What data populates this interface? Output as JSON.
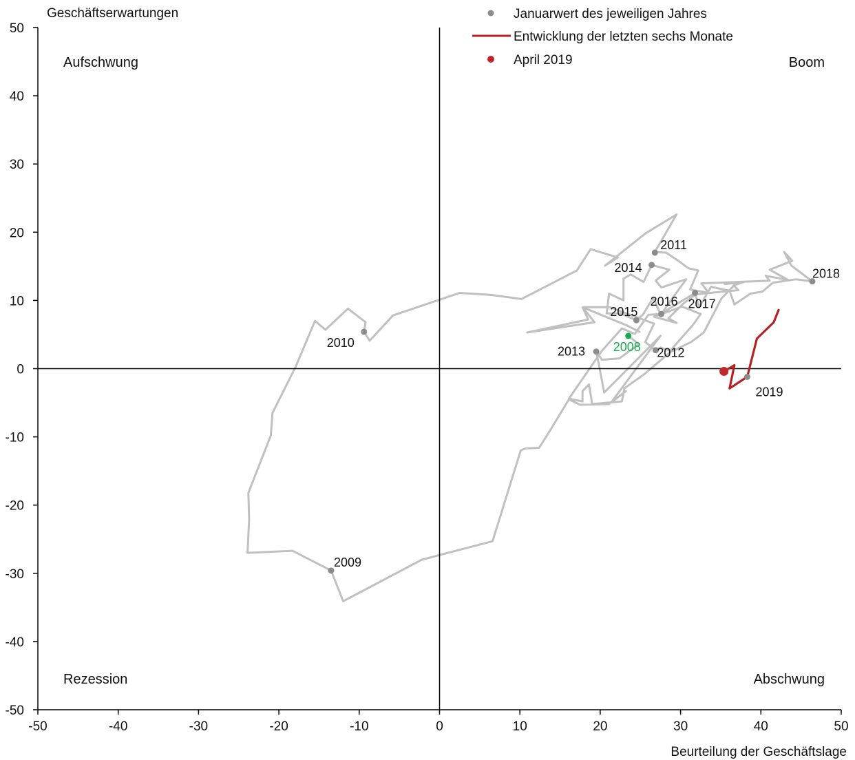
{
  "chart_data": {
    "type": "line",
    "title": "",
    "xlabel": "Beurteilung der Geschäftslage",
    "ylabel": "Geschäftserwartungen",
    "xlim": [
      -50,
      50
    ],
    "ylim": [
      -50,
      50
    ],
    "xticks": [
      -50,
      -40,
      -30,
      -20,
      -10,
      0,
      10,
      20,
      30,
      40,
      50
    ],
    "yticks": [
      -50,
      -40,
      -30,
      -20,
      -10,
      0,
      10,
      20,
      30,
      40,
      50
    ],
    "grid": false,
    "legend_position": "top",
    "colors": {
      "history_line": "#c0c0c0",
      "year_marker": "#8c8c8c",
      "recent_line": "#b22222",
      "current_point": "#c0272d",
      "highlight_year": "#1aaa4e",
      "axis": "#000000"
    },
    "quadrant_labels": {
      "top_left": "Aufschwung",
      "top_right": "Boom",
      "bottom_left": "Rezession",
      "bottom_right": "Abschwung"
    },
    "legend": [
      {
        "label": "Januarwert des jeweiligen Jahres",
        "marker": "dot",
        "color": "#8c8c8c"
      },
      {
        "label": "Entwicklung der letzten sechs Monate",
        "marker": "line",
        "color": "#b22222"
      },
      {
        "label": "April 2019",
        "marker": "dot",
        "color": "#c0272d"
      }
    ],
    "series": [
      {
        "name": "",
        "color": "#c0c0c0",
        "points": [
          [
            23.5,
            4.8
          ],
          [
            24.8,
            3.6
          ],
          [
            22.4,
            1.5
          ],
          [
            20.2,
            1.3
          ],
          [
            19.5,
            2.6
          ],
          [
            20.5,
            -3.5
          ],
          [
            27.5,
            4.8
          ],
          [
            21.4,
            -4.9
          ],
          [
            23.2,
            -3.3
          ],
          [
            21.1,
            -5.2
          ],
          [
            17.5,
            -5.3
          ],
          [
            16.1,
            -4.5
          ],
          [
            13.9,
            -8.8
          ],
          [
            12.4,
            -11.6
          ],
          [
            10.7,
            -11.7
          ],
          [
            10.1,
            -12.0
          ],
          [
            6.6,
            -25.3
          ],
          [
            -2.2,
            -28.0
          ],
          [
            -12.0,
            -34.1
          ],
          [
            -13.5,
            -29.6
          ],
          [
            -18.3,
            -26.7
          ],
          [
            -23.9,
            -27.0
          ],
          [
            -23.7,
            -22.1
          ],
          [
            -23.8,
            -18.2
          ],
          [
            -21.0,
            -9.8
          ],
          [
            -20.8,
            -6.5
          ],
          [
            -17.9,
            0.3
          ],
          [
            -15.5,
            7.0
          ],
          [
            -14.2,
            5.7
          ],
          [
            -11.4,
            8.8
          ],
          [
            -9.2,
            6.8
          ],
          [
            -9.4,
            5.4
          ],
          [
            -8.7,
            4.1
          ],
          [
            -5.8,
            7.8
          ],
          [
            2.5,
            11.1
          ],
          [
            6.5,
            10.8
          ],
          [
            10.2,
            10.2
          ],
          [
            17.1,
            14.4
          ],
          [
            18.8,
            17.5
          ],
          [
            22.2,
            16.3
          ],
          [
            20.6,
            15.1
          ],
          [
            25.6,
            19.8
          ],
          [
            29.5,
            22.6
          ],
          [
            26.8,
            17.1
          ],
          [
            28.2,
            17.0
          ],
          [
            29.6,
            15.9
          ],
          [
            31.0,
            14.7
          ],
          [
            32.2,
            14.4
          ],
          [
            31.2,
            11.6
          ],
          [
            33.5,
            11.1
          ],
          [
            32.6,
            12.5
          ],
          [
            37.1,
            12.7
          ],
          [
            35.1,
            10.3
          ],
          [
            32.9,
            5.3
          ],
          [
            31.3,
            3.9
          ],
          [
            28.7,
            2.4
          ],
          [
            25.5,
            -0.8
          ],
          [
            23.0,
            -2.9
          ],
          [
            22.7,
            -4.8
          ],
          [
            19.0,
            -5.2
          ],
          [
            18.6,
            -2.3
          ],
          [
            17.8,
            -3.3
          ],
          [
            17.8,
            -4.8
          ],
          [
            16.1,
            -4.4
          ],
          [
            19.2,
            0.9
          ],
          [
            20.2,
            2.6
          ],
          [
            22.7,
            5.9
          ],
          [
            24.3,
            5.1
          ],
          [
            26.0,
            7.9
          ],
          [
            27.6,
            8.0
          ],
          [
            29.4,
            11.0
          ],
          [
            30.7,
            13.1
          ],
          [
            27.6,
            11.9
          ],
          [
            26.9,
            12.9
          ],
          [
            28.6,
            14.5
          ],
          [
            26.4,
            15.2
          ],
          [
            25.4,
            12.7
          ],
          [
            23.8,
            13.8
          ],
          [
            22.9,
            13.2
          ],
          [
            22.9,
            10.0
          ],
          [
            21.1,
            11.0
          ],
          [
            20.9,
            9.0
          ],
          [
            20.8,
            8.1
          ],
          [
            22.5,
            8.1
          ],
          [
            24.5,
            7.1
          ],
          [
            25.3,
            7.9
          ],
          [
            26.6,
            10.4
          ],
          [
            27.5,
            8.0
          ],
          [
            31.8,
            11.1
          ],
          [
            32.3,
            9.0
          ],
          [
            33.8,
            12.0
          ],
          [
            36.1,
            11.4
          ],
          [
            36.7,
            9.4
          ],
          [
            38.7,
            11.0
          ],
          [
            40.2,
            11.3
          ],
          [
            41.5,
            12.6
          ],
          [
            44.4,
            13.1
          ],
          [
            46.4,
            12.8
          ],
          [
            43.8,
            15.1
          ],
          [
            42.9,
            17.1
          ],
          [
            43.9,
            15.8
          ],
          [
            41.1,
            14.5
          ],
          [
            43.4,
            13.0
          ],
          [
            40.6,
            13.6
          ],
          [
            41.1,
            12.9
          ],
          [
            37.0,
            12.7
          ],
          [
            35.5,
            12.4
          ],
          [
            37.9,
            12.7
          ],
          [
            36.6,
            12.2
          ],
          [
            37.2,
            11.5
          ],
          [
            31.9,
            10.9
          ],
          [
            30.4,
            9.6
          ],
          [
            28.5,
            7.4
          ],
          [
            29.5,
            6.7
          ],
          [
            26.7,
            7.6
          ],
          [
            30.2,
            9.1
          ],
          [
            32.5,
            8.0
          ],
          [
            31.6,
            6.5
          ],
          [
            28.7,
            2.6
          ],
          [
            27.5,
            3.1
          ],
          [
            26.9,
            2.7
          ],
          [
            25.6,
            3.9
          ],
          [
            26.7,
            6.6
          ],
          [
            21.2,
            9.0
          ],
          [
            17.8,
            9.0
          ],
          [
            19.3,
            6.8
          ],
          [
            10.9,
            5.3
          ],
          [
            18.5,
            7.2
          ],
          [
            17.8,
            9.0
          ],
          [
            23.2,
            6.4
          ],
          [
            24.9,
            5.4
          ]
        ]
      },
      {
        "name": "Entwicklung der letzten sechs Monate",
        "color": "#b22222",
        "points": [
          [
            42.2,
            8.6
          ],
          [
            41.6,
            6.8
          ],
          [
            39.5,
            4.4
          ],
          [
            38.3,
            -1.2
          ],
          [
            36.1,
            -2.9
          ],
          [
            36.7,
            0.5
          ],
          [
            35.4,
            -0.4
          ]
        ]
      }
    ],
    "year_points": [
      {
        "year": "2008",
        "x": 23.5,
        "y": 4.8,
        "color": "#1aaa4e",
        "label_dx": -2,
        "label_dy": 22,
        "anchor": "middle"
      },
      {
        "year": "2009",
        "x": -13.5,
        "y": -29.6,
        "color": "#8c8c8c",
        "label_dx": 4,
        "label_dy": -6,
        "anchor": "start"
      },
      {
        "year": "2010",
        "x": -9.4,
        "y": 5.4,
        "color": "#8c8c8c",
        "label_dx": -14,
        "label_dy": 22,
        "anchor": "end"
      },
      {
        "year": "2011",
        "x": 26.8,
        "y": 17.0,
        "color": "#8c8c8c",
        "label_dx": 8,
        "label_dy": -5,
        "anchor": "start"
      },
      {
        "year": "2012",
        "x": 26.9,
        "y": 2.7,
        "color": "#8c8c8c",
        "label_dx": 2,
        "label_dy": 10,
        "anchor": "start"
      },
      {
        "year": "2013",
        "x": 19.5,
        "y": 2.5,
        "color": "#8c8c8c",
        "label_dx": -16,
        "label_dy": 6,
        "anchor": "end"
      },
      {
        "year": "2014",
        "x": 26.4,
        "y": 15.2,
        "color": "#8c8c8c",
        "label_dx": -14,
        "label_dy": 10,
        "anchor": "end"
      },
      {
        "year": "2015",
        "x": 24.5,
        "y": 7.1,
        "color": "#8c8c8c",
        "label_dx": 2,
        "label_dy": -6,
        "anchor": "end"
      },
      {
        "year": "2016",
        "x": 27.6,
        "y": 8.0,
        "color": "#8c8c8c",
        "label_dx": 4,
        "label_dy": -12,
        "anchor": "middle"
      },
      {
        "year": "2017",
        "x": 31.8,
        "y": 11.1,
        "color": "#8c8c8c",
        "label_dx": -10,
        "label_dy": 22,
        "anchor": "start"
      },
      {
        "year": "2018",
        "x": 46.4,
        "y": 12.8,
        "color": "#8c8c8c",
        "label_dx": 0,
        "label_dy": -5,
        "anchor": "start"
      },
      {
        "year": "2019",
        "x": 38.3,
        "y": -1.2,
        "color": "#8c8c8c",
        "label_dx": 12,
        "label_dy": 28,
        "anchor": "start"
      }
    ],
    "current_point": {
      "label": "April 2019",
      "x": 35.4,
      "y": -0.4,
      "color": "#c0272d"
    }
  }
}
